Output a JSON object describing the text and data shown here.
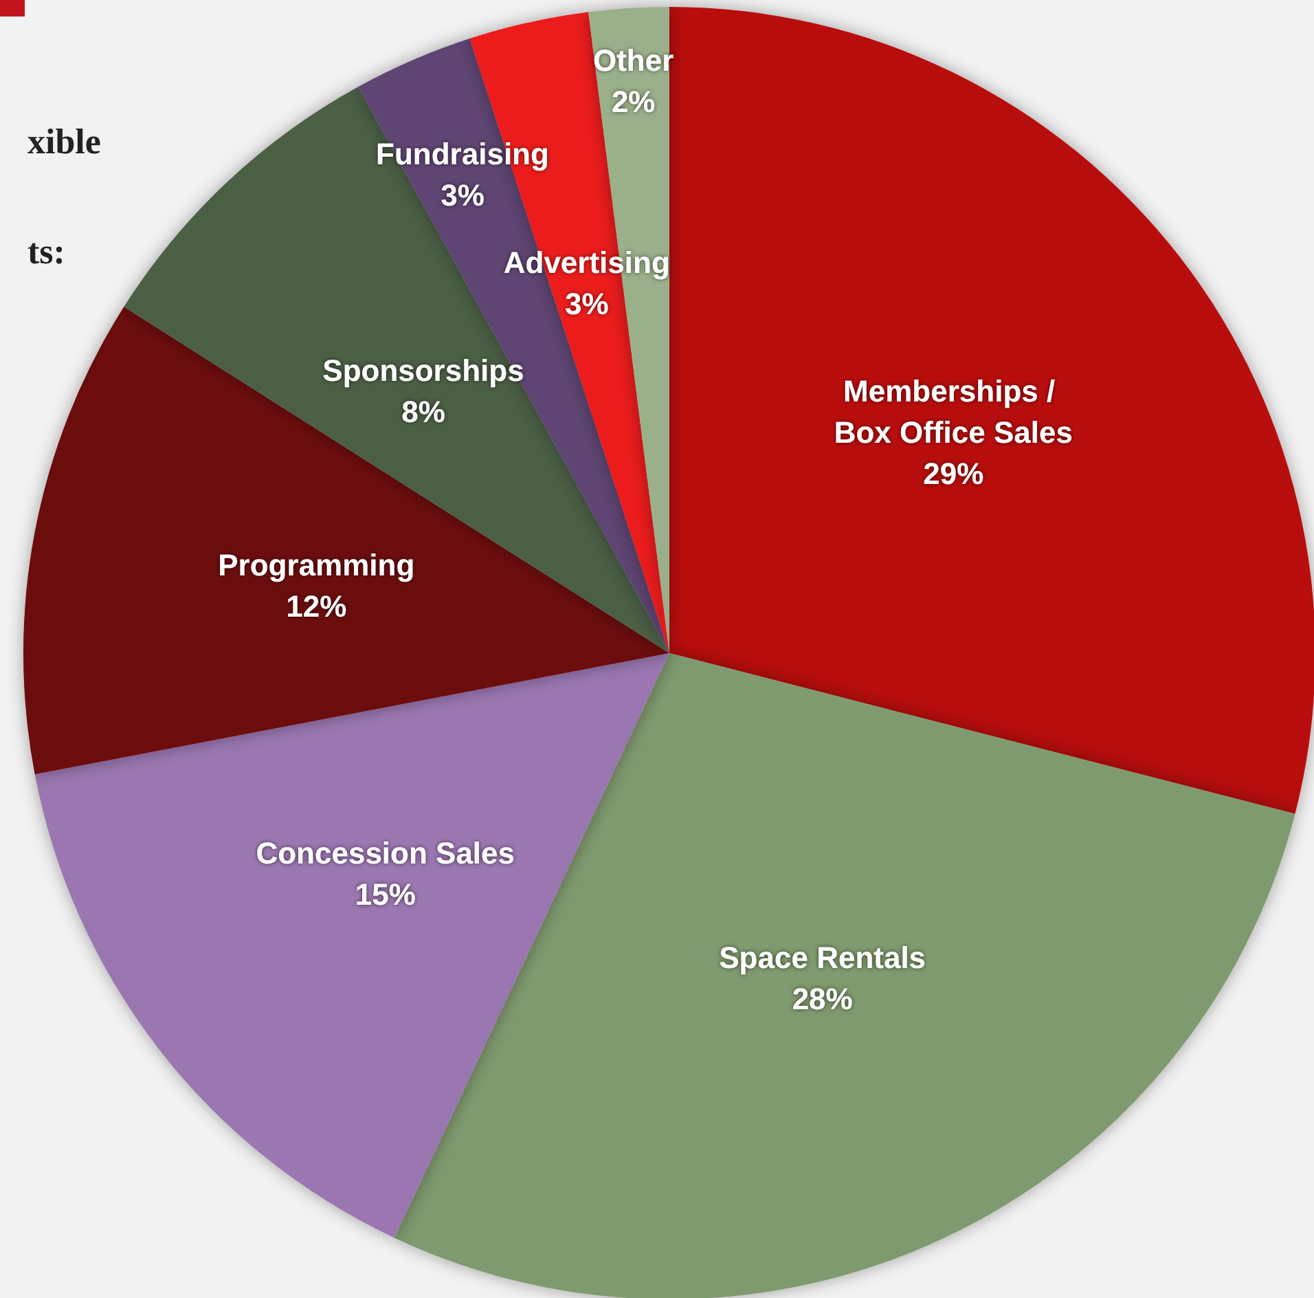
{
  "chart_data": {
    "type": "pie",
    "categories": [
      "Memberships / Box Office Sales",
      "Space Rentals",
      "Concession Sales",
      "Programming",
      "Sponsorships",
      "Fundraising",
      "Advertising",
      "Other"
    ],
    "values": [
      29,
      28,
      15,
      12,
      8,
      3,
      3,
      2
    ],
    "value_labels": [
      "29%",
      "28%",
      "15%",
      "12%",
      "8%",
      "3%",
      "3%",
      "2%"
    ],
    "colors": [
      "#b80d10",
      "#7f9a6e",
      "#9b77b1",
      "#6c0709",
      "#4c5e45",
      "#5f4473",
      "#ec1a1b",
      "#9ab08a"
    ],
    "annotations": [
      "xible",
      "ts:"
    ],
    "legend": false
  }
}
